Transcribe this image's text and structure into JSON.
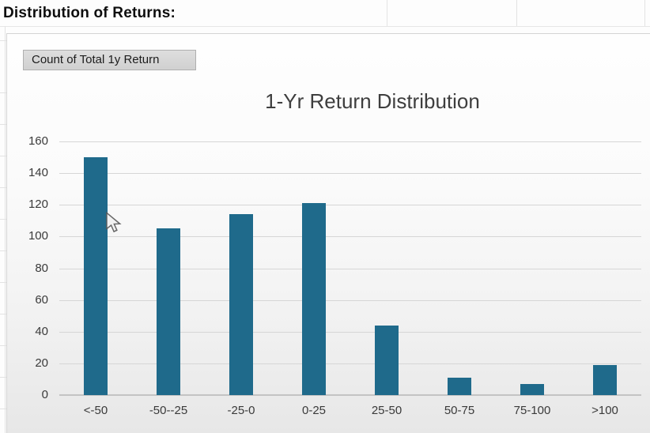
{
  "sheet": {
    "heading": "Distribution of Returns:"
  },
  "pivot_button": {
    "label": "Count of Total 1y Return"
  },
  "chart_data": {
    "type": "bar",
    "title": "1-Yr Return Distribution",
    "categories": [
      "<-50",
      "-50--25",
      "-25-0",
      "0-25",
      "25-50",
      "50-75",
      "75-100",
      ">100"
    ],
    "series": [
      {
        "name": "Count of Total 1y Return",
        "values": [
          150,
          105,
          114,
          121,
          44,
          11,
          7,
          19
        ]
      }
    ],
    "xlabel": "",
    "ylabel": "",
    "ylim": [
      0,
      160
    ],
    "yticks": [
      0,
      20,
      40,
      60,
      80,
      100,
      120,
      140,
      160
    ],
    "grid": true,
    "legend": "none",
    "bar_color": "#1f6a8b"
  },
  "colors": {
    "bar": "#1f6a8b",
    "gridline": "#d6d6d6",
    "axis_line": "#c3c3c3",
    "title_text": "#3e3e3e",
    "tick_text": "#3a3a3a",
    "button_bg": "#d7d7d7",
    "button_border": "#afafaf"
  }
}
